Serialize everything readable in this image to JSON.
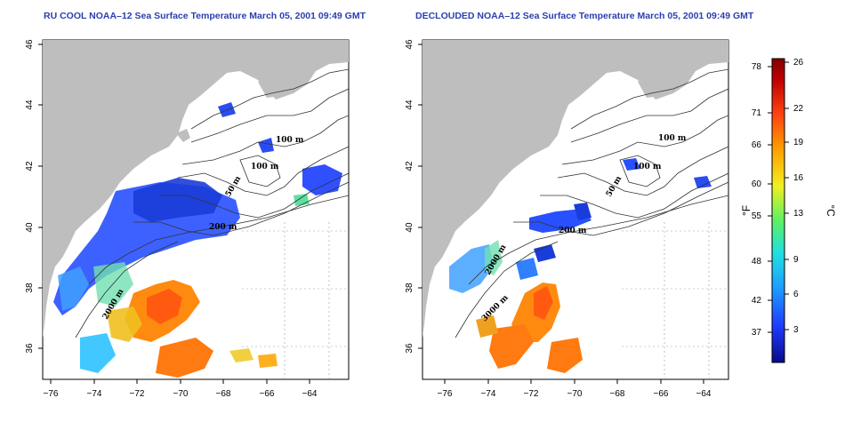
{
  "maps": [
    {
      "id": "left",
      "title": "RU COOL NOAA–12 Sea Surface Temperature March 05, 2001 09:49 GMT",
      "contour_labels": [
        "100 m",
        "100 m",
        "50 m",
        "200 m",
        "2000 m"
      ]
    },
    {
      "id": "right",
      "title": "DECLOUDED NOAA–12 Sea Surface Temperature March 05, 2001 09:49 GMT",
      "contour_labels": [
        "100 m",
        "100 m",
        "50 m",
        "200 m",
        "2000 m",
        "3000 m"
      ]
    }
  ],
  "axes": {
    "lon_ticks": [
      "−76",
      "−74",
      "−72",
      "−70",
      "−68",
      "−66",
      "−64"
    ],
    "lat_ticks": [
      "36",
      "38",
      "40",
      "42",
      "44",
      "46"
    ]
  },
  "colorbar": {
    "unit_f": "°F",
    "unit_c": "°C",
    "f_ticks": [
      "78",
      "71",
      "66",
      "60",
      "55",
      "48",
      "42",
      "37"
    ],
    "c_ticks": [
      "26",
      "22",
      "19",
      "16",
      "13",
      "9",
      "6",
      "3"
    ],
    "colors": [
      "#0a0a8a",
      "#1e3cff",
      "#1ea0ff",
      "#20e0e0",
      "#60f060",
      "#f0f020",
      "#ffa000",
      "#ff4010",
      "#c00000",
      "#800000"
    ]
  }
}
